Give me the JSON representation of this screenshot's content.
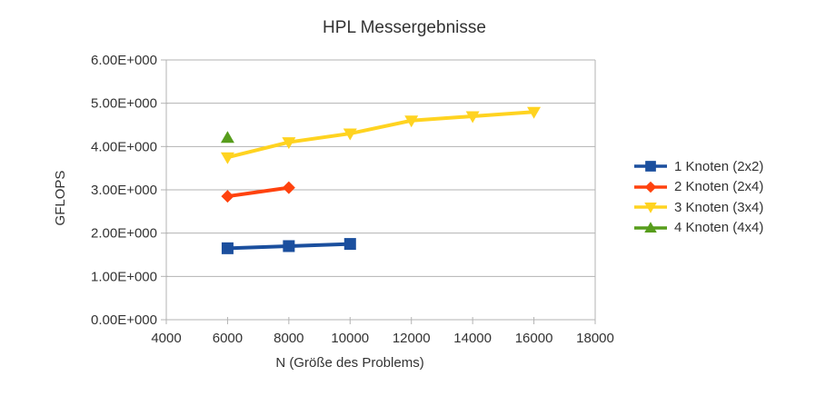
{
  "chart_data": {
    "type": "line",
    "title": "HPL Messergebnisse",
    "xlabel": "N (Größe des Problems)",
    "ylabel": "GFLOPS",
    "xlim": [
      4000,
      18000
    ],
    "ylim": [
      0,
      6
    ],
    "x_ticks": [
      4000,
      6000,
      8000,
      10000,
      12000,
      14000,
      16000,
      18000
    ],
    "x_tick_labels": [
      "4000",
      "6000",
      "8000",
      "10000",
      "12000",
      "14000",
      "16000",
      "18000"
    ],
    "y_ticks": [
      0,
      1,
      2,
      3,
      4,
      5,
      6
    ],
    "y_tick_labels": [
      "0.00E+000",
      "1.00E+000",
      "2.00E+000",
      "3.00E+000",
      "4.00E+000",
      "5.00E+000",
      "6.00E+000"
    ],
    "grid": "horizontal",
    "legend_position": "right",
    "background_color": "#ffffff",
    "grid_color": "#b3b3b3",
    "axis_color": "#b3b3b3",
    "text_color": "#333333",
    "series": [
      {
        "name": "1 Knoten (2x2)",
        "marker": "square",
        "color": "#1b4f9e",
        "x": [
          6000,
          8000,
          10000
        ],
        "y": [
          1.65,
          1.7,
          1.75
        ]
      },
      {
        "name": "2 Knoten (2x4)",
        "marker": "diamond",
        "color": "#ff420e",
        "x": [
          6000,
          8000
        ],
        "y": [
          2.85,
          3.05
        ]
      },
      {
        "name": "3 Knoten (3x4)",
        "marker": "triangle-down",
        "color": "#ffd320",
        "x": [
          6000,
          8000,
          10000,
          12000,
          14000,
          16000
        ],
        "y": [
          3.75,
          4.1,
          4.3,
          4.6,
          4.7,
          4.8
        ]
      },
      {
        "name": "4 Knoten (4x4)",
        "marker": "triangle-up",
        "color": "#579d1c",
        "x": [
          6000
        ],
        "y": [
          4.2
        ]
      }
    ]
  }
}
